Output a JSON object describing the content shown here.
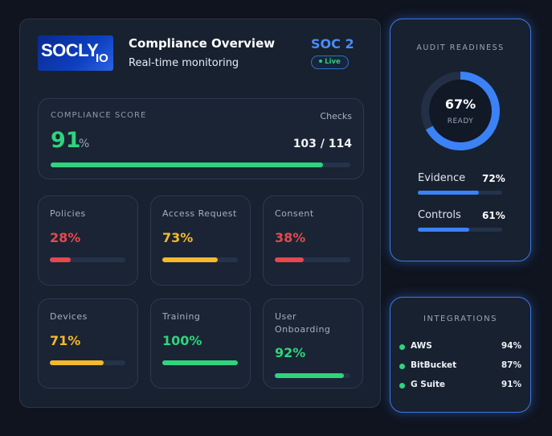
{
  "header": {
    "logo_main": "SOCLY",
    "logo_suffix": "IO",
    "title": "Compliance Overview",
    "subtitle": "Real-time monitoring",
    "framework": "SOC 2",
    "status": "Live"
  },
  "score": {
    "label": "COMPLIANCE SCORE",
    "value": "91",
    "unit": "%",
    "checks_label": "Checks",
    "checks": "103 / 114",
    "progress": 91
  },
  "cards": [
    {
      "label": "Policies",
      "value": "28%",
      "progress": 28,
      "color": "#e5484d"
    },
    {
      "label": "Access Request",
      "value": "73%",
      "progress": 73,
      "color": "#f5b82e"
    },
    {
      "label": "Consent",
      "value": "38%",
      "progress": 38,
      "color": "#e5484d"
    },
    {
      "label": "Devices",
      "value": "71%",
      "progress": 71,
      "color": "#f5b82e"
    },
    {
      "label": "Training",
      "value": "100%",
      "progress": 100,
      "color": "#2fd47c"
    },
    {
      "label": "User Onboarding",
      "value": "92%",
      "progress": 92,
      "color": "#2fd47c"
    }
  ],
  "audit": {
    "title": "AUDIT READINESS",
    "percent": "67%",
    "ring_value": 67,
    "status": "READY",
    "metrics": [
      {
        "label": "Evidence",
        "value": "72%",
        "progress": 72
      },
      {
        "label": "Controls",
        "value": "61%",
        "progress": 61
      }
    ]
  },
  "integrations": {
    "title": "INTEGRATIONS",
    "items": [
      {
        "name": "AWS",
        "value": "94%"
      },
      {
        "name": "BitBucket",
        "value": "87%"
      },
      {
        "name": "G Suite",
        "value": "91%"
      }
    ]
  },
  "colors": {
    "accent": "#3b78e6",
    "success": "#2fd47c",
    "warning": "#f5b82e",
    "danger": "#e5484d"
  }
}
